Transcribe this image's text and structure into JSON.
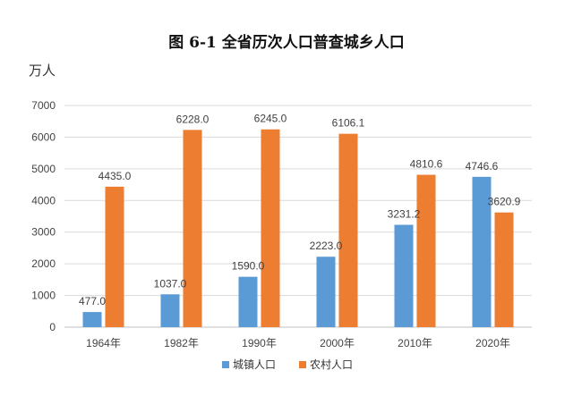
{
  "chart_data": {
    "type": "bar",
    "title": "图 6-1  全省历次人口普查城乡人口",
    "ylabel": "万人",
    "xlabel": "",
    "ylim": [
      0,
      7000
    ],
    "yticks": [
      0,
      1000,
      2000,
      3000,
      4000,
      5000,
      6000,
      7000
    ],
    "grid": true,
    "legend_position": "bottom",
    "categories": [
      "1964年",
      "1982年",
      "1990年",
      "2000年",
      "2010年",
      "2020年"
    ],
    "series": [
      {
        "name": "城镇人口",
        "color": "#5b9bd5",
        "values": [
          477.0,
          1037.0,
          1590.0,
          2223.0,
          3231.2,
          4746.6
        ],
        "labels": [
          "477.0",
          "1037.0",
          "1590.0",
          "2223.0",
          "3231.2",
          "4746.6"
        ]
      },
      {
        "name": "农村人口",
        "color": "#ed7d31",
        "values": [
          4435.0,
          6228.0,
          6245.0,
          6106.1,
          4810.6,
          3620.9
        ],
        "labels": [
          "4435.0",
          "6228.0",
          "6245.0",
          "6106.1",
          "4810.6",
          "3620.9"
        ]
      }
    ]
  }
}
